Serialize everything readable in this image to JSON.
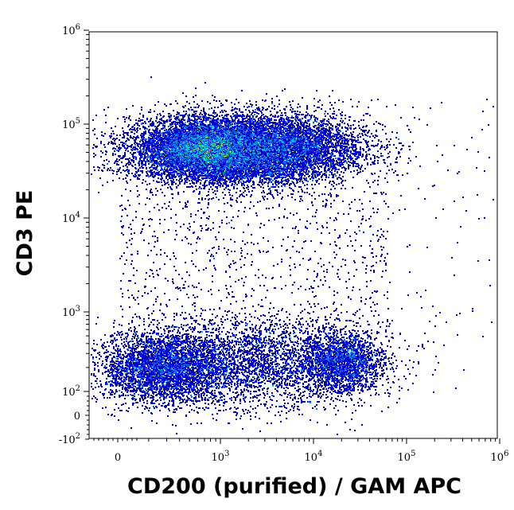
{
  "chart_data": {
    "type": "scatter",
    "style": "density-dot-plot (flow cytometry)",
    "xlabel": "CD200 (purified) / GAM APC",
    "ylabel": "CD3 PE",
    "x_scale": "biexponential (log above ~10^2, linear near 0)",
    "y_scale": "biexponential (log above ~10^2, linear near 0)",
    "xlim": [
      -200,
      1000000
    ],
    "ylim": [
      -200,
      1000000
    ],
    "x_ticks": [
      {
        "label": "0",
        "value": 0
      },
      {
        "label": "10^3",
        "value": 1000
      },
      {
        "label": "10^4",
        "value": 10000
      },
      {
        "label": "10^5",
        "value": 100000
      },
      {
        "label": "10^6",
        "value": 1000000
      }
    ],
    "y_ticks": [
      {
        "label": "10^6",
        "value": 1000000
      },
      {
        "label": "10^5",
        "value": 100000
      },
      {
        "label": "10^4",
        "value": 10000
      },
      {
        "label": "10^3",
        "value": 1000
      },
      {
        "label": "10^2",
        "value": 100
      },
      {
        "label": "0",
        "value": 0
      },
      {
        "label": "-10^2",
        "value": -100
      }
    ],
    "populations": [
      {
        "label_text": "",
        "x_center": 800,
        "y_center": 55000,
        "density": "very high"
      },
      {
        "label_text": "",
        "x_center": 300,
        "y_center": 200,
        "density": "medium"
      },
      {
        "label_text": "",
        "x_center": 20000,
        "y_center": 250,
        "density": "medium"
      },
      {
        "label_text": "",
        "x_center": 3000,
        "y_center": 250,
        "density": "low"
      }
    ],
    "colormap": [
      "#0000cc",
      "#0070ff",
      "#00c8ff",
      "#00e070",
      "#c8f000",
      "#ff9900",
      "#ff0000"
    ],
    "grid": false,
    "legend": "none"
  }
}
